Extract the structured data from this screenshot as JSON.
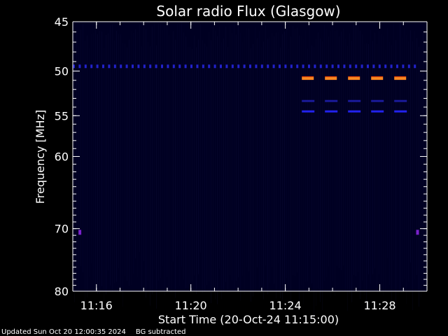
{
  "chart_data": {
    "type": "heatmap",
    "title": "Solar radio Flux (Glasgow)",
    "xlabel": "Start Time (20-Oct-24 11:15:00)",
    "ylabel": "Frequency [MHz]",
    "x_range_minutes": [
      "11:15",
      "11:30"
    ],
    "x_ticks": [
      "11:16",
      "11:20",
      "11:24",
      "11:28"
    ],
    "y_range_mhz": [
      45,
      80
    ],
    "y_ticks": [
      45,
      50,
      55,
      60,
      70,
      80
    ],
    "y_scale": "log",
    "grid": false,
    "background_color": "#000022",
    "features": [
      {
        "kind": "dashed-band",
        "freq_mhz": 49.5,
        "time_start": "11:15",
        "time_end": "11:29.6",
        "color": "#2222cc",
        "intensity": "low"
      },
      {
        "kind": "dashed-band",
        "freq_mhz": 50.8,
        "time_start": "11:24.7",
        "time_end": "11:30",
        "color": "#ff8822",
        "intensity": "high"
      },
      {
        "kind": "dashed-band",
        "freq_mhz": 53.3,
        "time_start": "11:24.7",
        "time_end": "11:30",
        "color": "#1a1a99",
        "intensity": "medium"
      },
      {
        "kind": "dashed-band",
        "freq_mhz": 54.5,
        "time_start": "11:24.7",
        "time_end": "11:30",
        "color": "#2222ee",
        "intensity": "medium"
      },
      {
        "kind": "spot",
        "freq_mhz": 70.6,
        "time": "11:15.3",
        "color": "#7a22cc"
      },
      {
        "kind": "spot",
        "freq_mhz": 70.6,
        "time": "11:29.6",
        "color": "#7a22cc"
      }
    ]
  },
  "footer": {
    "updated": "Updated Sun Oct 20 12:00:35 2024",
    "note": "BG subtracted"
  }
}
